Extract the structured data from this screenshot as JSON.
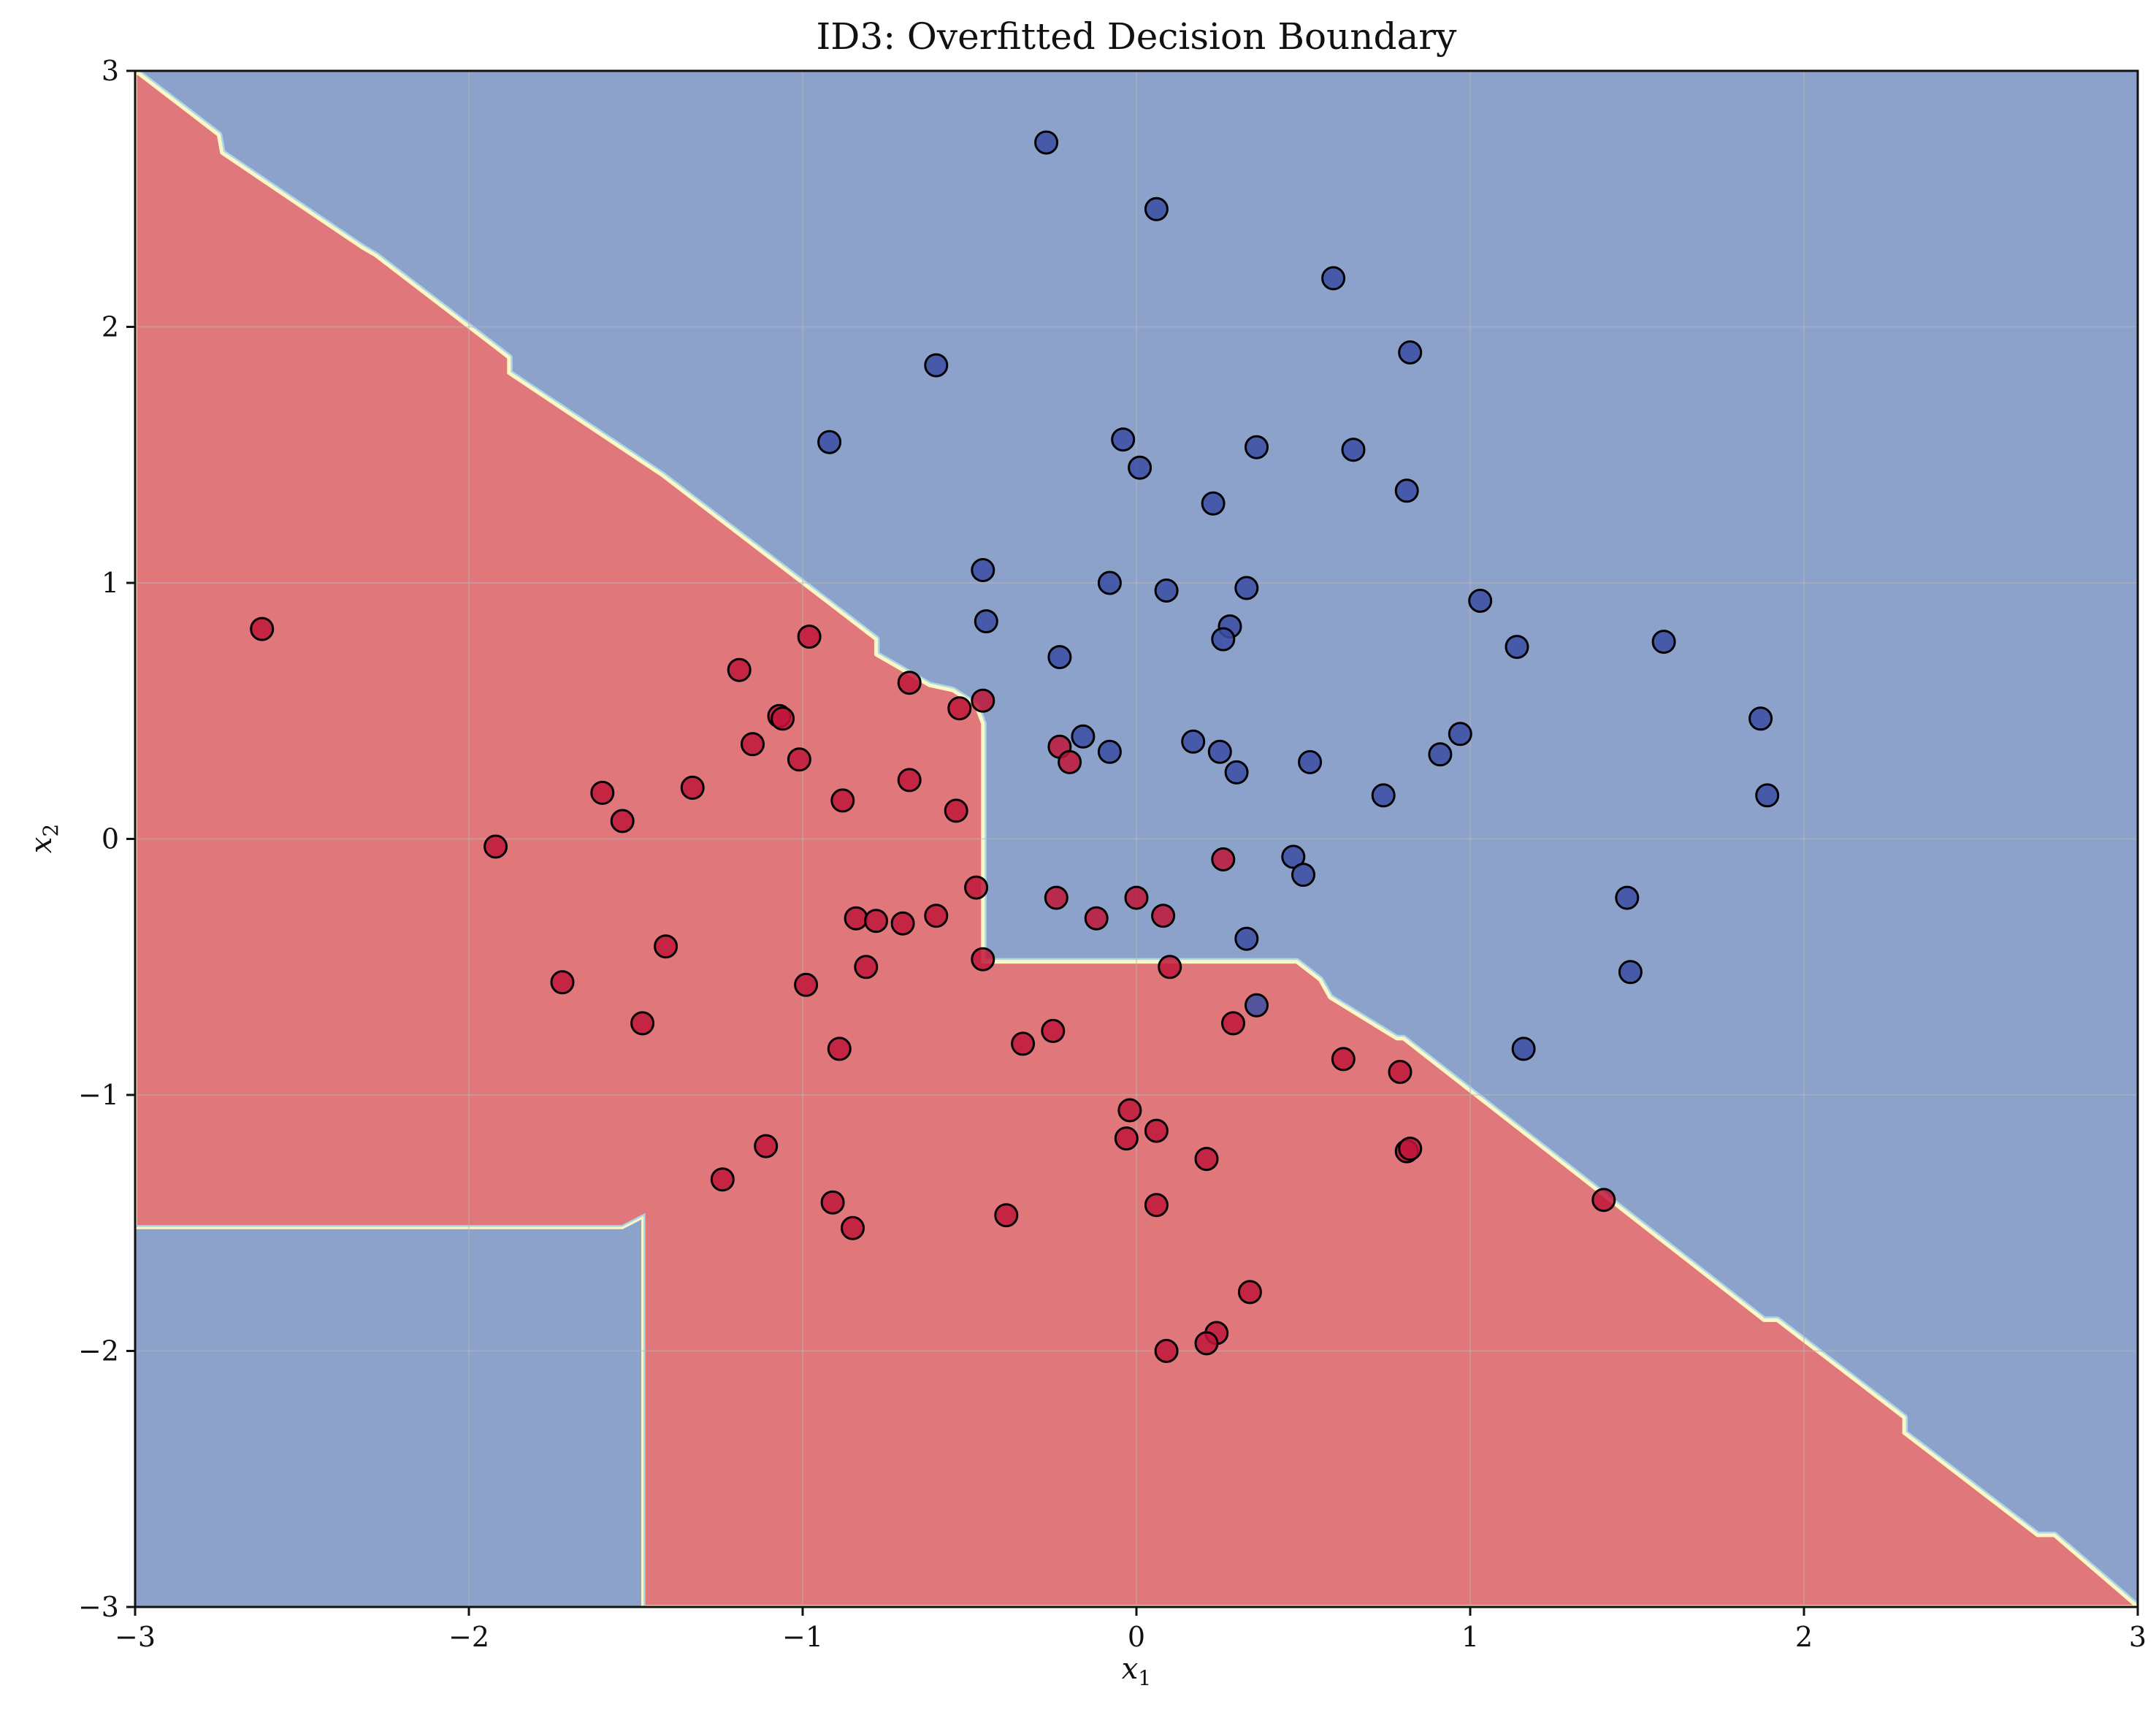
{
  "chart_data": {
    "type": "scatter",
    "title": "ID3: Overfitted Decision Boundary",
    "xlabel": "x",
    "xlabel_sub": "1",
    "ylabel": "x",
    "ylabel_sub": "2",
    "xlim": [
      -3,
      3
    ],
    "ylim": [
      -3,
      3
    ],
    "xticks": [
      -3,
      -2,
      -1,
      0,
      1,
      2,
      3
    ],
    "yticks": [
      -3,
      -2,
      -1,
      0,
      1,
      2,
      3
    ],
    "grid": true,
    "colors": {
      "blue_region": "#8da2cb",
      "red_region": "#df777b",
      "blue_point": "#3b4da3",
      "red_point": "#c0163a",
      "boundary_glow": "#fdf7c6",
      "boundary_edge": "#a9d8e8"
    },
    "decision_regions": {
      "red_polygon": [
        [
          -3,
          3
        ],
        [
          -2.75,
          2.75
        ],
        [
          -2.74,
          2.68
        ],
        [
          -2.32,
          2.31
        ],
        [
          -2.28,
          2.28
        ],
        [
          -1.92,
          1.92
        ],
        [
          -1.88,
          1.88
        ],
        [
          -1.88,
          1.82
        ],
        [
          -1.42,
          1.42
        ],
        [
          -1.38,
          1.38
        ],
        [
          -0.8,
          0.8
        ],
        [
          -0.78,
          0.78
        ],
        [
          -0.78,
          0.72
        ],
        [
          -0.62,
          0.6
        ],
        [
          -0.55,
          0.58
        ],
        [
          -0.48,
          0.52
        ],
        [
          -0.46,
          0.45
        ],
        [
          -0.46,
          -0.48
        ],
        [
          0.48,
          -0.48
        ],
        [
          0.55,
          -0.55
        ],
        [
          0.58,
          -0.62
        ],
        [
          0.78,
          -0.78
        ],
        [
          0.8,
          -0.78
        ],
        [
          1.88,
          -1.88
        ],
        [
          1.92,
          -1.88
        ],
        [
          2.3,
          -2.26
        ],
        [
          2.3,
          -2.32
        ],
        [
          2.7,
          -2.72
        ],
        [
          2.75,
          -2.72
        ],
        [
          3,
          -3
        ],
        [
          -1.48,
          -3
        ],
        [
          -1.48,
          -1.48
        ],
        [
          -1.54,
          -1.52
        ],
        [
          -3,
          -1.52
        ]
      ],
      "blue_lower_left": [
        [
          -3,
          -1.52
        ],
        [
          -1.54,
          -1.52
        ],
        [
          -1.48,
          -1.48
        ],
        [
          -1.48,
          -3
        ],
        [
          -3,
          -3
        ]
      ]
    },
    "series": [
      {
        "class": "blue",
        "points": [
          [
            -0.27,
            2.72
          ],
          [
            0.06,
            2.46
          ],
          [
            0.59,
            2.19
          ],
          [
            0.82,
            1.9
          ],
          [
            -0.6,
            1.85
          ],
          [
            -0.92,
            1.55
          ],
          [
            -0.04,
            1.56
          ],
          [
            0.01,
            1.45
          ],
          [
            0.36,
            1.53
          ],
          [
            0.65,
            1.52
          ],
          [
            0.81,
            1.36
          ],
          [
            0.23,
            1.31
          ],
          [
            -0.46,
            1.05
          ],
          [
            -0.08,
            1.0
          ],
          [
            0.09,
            0.97
          ],
          [
            0.33,
            0.98
          ],
          [
            1.03,
            0.93
          ],
          [
            -0.45,
            0.85
          ],
          [
            0.28,
            0.83
          ],
          [
            0.26,
            0.78
          ],
          [
            -0.23,
            0.71
          ],
          [
            1.14,
            0.75
          ],
          [
            1.58,
            0.77
          ],
          [
            1.87,
            0.47
          ],
          [
            -0.16,
            0.4
          ],
          [
            -0.08,
            0.34
          ],
          [
            0.17,
            0.38
          ],
          [
            0.25,
            0.34
          ],
          [
            0.3,
            0.26
          ],
          [
            0.52,
            0.3
          ],
          [
            0.97,
            0.41
          ],
          [
            0.91,
            0.33
          ],
          [
            0.74,
            0.17
          ],
          [
            1.89,
            0.17
          ],
          [
            0.47,
            -0.07
          ],
          [
            0.5,
            -0.14
          ],
          [
            1.47,
            -0.23
          ],
          [
            0.33,
            -0.39
          ],
          [
            1.48,
            -0.52
          ],
          [
            0.36,
            -0.65
          ],
          [
            1.16,
            -0.82
          ]
        ]
      },
      {
        "class": "red",
        "points": [
          [
            -2.62,
            0.82
          ],
          [
            -0.98,
            0.79
          ],
          [
            -1.19,
            0.66
          ],
          [
            -0.68,
            0.61
          ],
          [
            -0.53,
            0.51
          ],
          [
            -1.07,
            0.48
          ],
          [
            -1.06,
            0.47
          ],
          [
            -0.46,
            0.54
          ],
          [
            -1.15,
            0.37
          ],
          [
            -1.01,
            0.31
          ],
          [
            -0.68,
            0.23
          ],
          [
            -0.23,
            0.36
          ],
          [
            -0.2,
            0.3
          ],
          [
            -1.6,
            0.18
          ],
          [
            -1.33,
            0.2
          ],
          [
            -0.88,
            0.15
          ],
          [
            -0.54,
            0.11
          ],
          [
            -1.54,
            0.07
          ],
          [
            -1.92,
            -0.03
          ],
          [
            0.26,
            -0.08
          ],
          [
            -0.48,
            -0.19
          ],
          [
            -0.24,
            -0.23
          ],
          [
            0.0,
            -0.23
          ],
          [
            -0.6,
            -0.3
          ],
          [
            -0.84,
            -0.31
          ],
          [
            -0.78,
            -0.32
          ],
          [
            -0.7,
            -0.33
          ],
          [
            -0.12,
            -0.31
          ],
          [
            0.08,
            -0.3
          ],
          [
            -1.41,
            -0.42
          ],
          [
            -0.46,
            -0.47
          ],
          [
            -0.81,
            -0.5
          ],
          [
            0.1,
            -0.5
          ],
          [
            -1.72,
            -0.56
          ],
          [
            -0.99,
            -0.57
          ],
          [
            -1.48,
            -0.72
          ],
          [
            0.29,
            -0.72
          ],
          [
            -0.25,
            -0.75
          ],
          [
            -0.34,
            -0.8
          ],
          [
            -0.89,
            -0.82
          ],
          [
            0.62,
            -0.86
          ],
          [
            0.79,
            -0.91
          ],
          [
            -0.02,
            -1.06
          ],
          [
            0.06,
            -1.14
          ],
          [
            -0.03,
            -1.17
          ],
          [
            -1.11,
            -1.2
          ],
          [
            0.81,
            -1.22
          ],
          [
            0.82,
            -1.21
          ],
          [
            0.21,
            -1.25
          ],
          [
            -1.24,
            -1.33
          ],
          [
            1.4,
            -1.41
          ],
          [
            -0.91,
            -1.42
          ],
          [
            0.06,
            -1.43
          ],
          [
            -0.39,
            -1.47
          ],
          [
            -0.85,
            -1.52
          ],
          [
            0.34,
            -1.77
          ],
          [
            0.24,
            -1.93
          ],
          [
            0.21,
            -1.97
          ],
          [
            0.09,
            -2.0
          ]
        ]
      }
    ]
  }
}
